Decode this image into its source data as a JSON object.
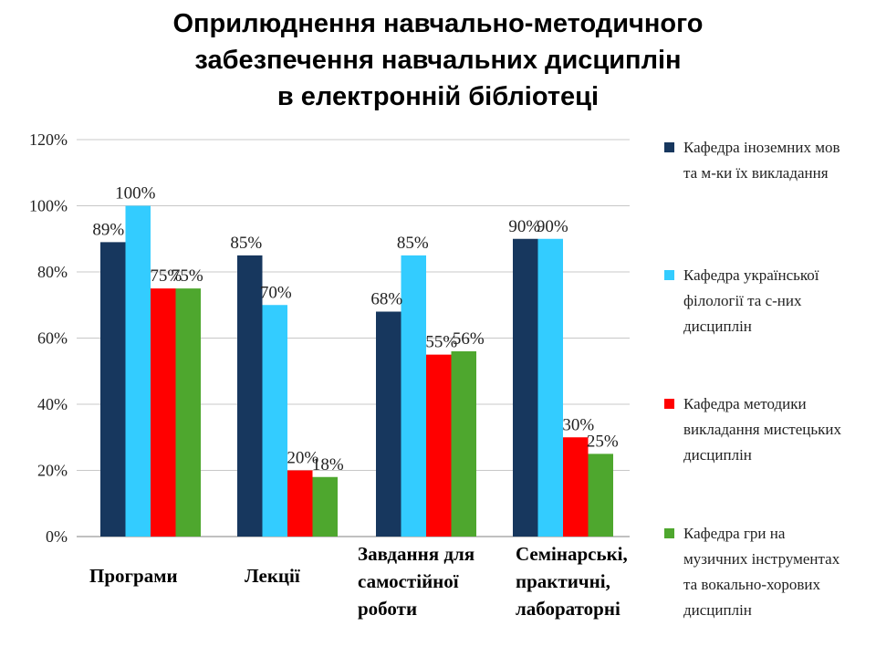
{
  "title_lines": [
    "Оприлюднення навчально-методичного",
    "забезпечення навчальних дисциплін",
    "в електронній бібліотеці"
  ],
  "chart_data": {
    "type": "bar",
    "title": "Оприлюднення навчально-методичного забезпечення навчальних дисциплін в електронній бібліотеці",
    "xlabel": "",
    "ylabel": "",
    "ylim": [
      0,
      120
    ],
    "yticks": [
      "0%",
      "20%",
      "40%",
      "60%",
      "80%",
      "100%",
      "120%"
    ],
    "grid": true,
    "legend_position": "right",
    "categories": [
      [
        "Програми"
      ],
      [
        "Лекції"
      ],
      [
        "Завдання для",
        "самостійної",
        "роботи"
      ],
      [
        "Семінарські,",
        "практичні,",
        "лабораторні"
      ]
    ],
    "series": [
      {
        "name_lines": [
          "Кафедра іноземних мов",
          "та м-ки їх викладання"
        ],
        "color": "#17375E",
        "values": [
          89,
          85,
          68,
          90
        ],
        "labels": [
          "89%",
          "85%",
          "68%",
          "90%"
        ]
      },
      {
        "name_lines": [
          "Кафедра української",
          "філології та с-них",
          "дисциплін"
        ],
        "color": "#33CCFF",
        "values": [
          100,
          70,
          85,
          90
        ],
        "labels": [
          "100%",
          "70%",
          "85%",
          "90%"
        ]
      },
      {
        "name_lines": [
          "Кафедра методики",
          "викладання мистецьких",
          "дисциплін"
        ],
        "color": "#FF0000",
        "values": [
          75,
          20,
          55,
          30
        ],
        "labels": [
          "75%",
          "20%",
          "55%",
          "30%"
        ]
      },
      {
        "name_lines": [
          "Кафедра гри на",
          "музичних інструментах",
          "та вокально-хорових",
          "дисциплін"
        ],
        "color": "#4EA72E",
        "values": [
          75,
          18,
          56,
          25
        ],
        "labels": [
          "75%",
          "18%",
          "56%",
          "25%"
        ]
      }
    ]
  }
}
